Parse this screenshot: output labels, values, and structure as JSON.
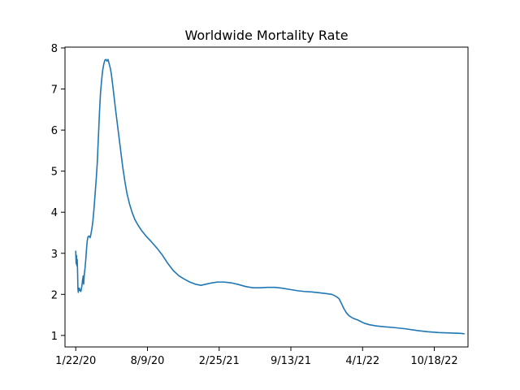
{
  "chart_data": {
    "type": "line",
    "title": "Worldwide Mortality Rate",
    "xlabel": "",
    "ylabel": "",
    "x_tick_labels": [
      "1/22/20",
      "8/9/20",
      "2/25/21",
      "9/13/21",
      "4/1/22",
      "10/18/22"
    ],
    "x_ticks": [
      "2020-01-22",
      "2020-08-09",
      "2021-02-25",
      "2021-09-13",
      "2022-04-01",
      "2022-10-18"
    ],
    "xlim": [
      "2019-12-23",
      "2023-01-20"
    ],
    "ylim": [
      0.72,
      8.02
    ],
    "y_ticks": [
      1,
      2,
      3,
      4,
      5,
      6,
      7,
      8
    ],
    "grid": false,
    "legend": "none",
    "series": [
      {
        "color": "#1f77b4",
        "points": [
          [
            "2020-01-22",
            3.05
          ],
          [
            "2020-01-23",
            2.75
          ],
          [
            "2020-01-24",
            2.95
          ],
          [
            "2020-01-25",
            2.7
          ],
          [
            "2020-01-26",
            2.85
          ],
          [
            "2020-01-27",
            2.6
          ],
          [
            "2020-01-28",
            2.15
          ],
          [
            "2020-01-29",
            2.05
          ],
          [
            "2020-01-30",
            2.15
          ],
          [
            "2020-01-31",
            2.1
          ],
          [
            "2020-02-01",
            2.15
          ],
          [
            "2020-02-02",
            2.12
          ],
          [
            "2020-02-03",
            2.1
          ],
          [
            "2020-02-04",
            2.08
          ],
          [
            "2020-02-05",
            2.07
          ],
          [
            "2020-02-06",
            2.1
          ],
          [
            "2020-02-08",
            2.2
          ],
          [
            "2020-02-10",
            2.35
          ],
          [
            "2020-02-12",
            2.45
          ],
          [
            "2020-02-13",
            2.25
          ],
          [
            "2020-02-15",
            2.5
          ],
          [
            "2020-02-17",
            2.65
          ],
          [
            "2020-02-19",
            2.85
          ],
          [
            "2020-02-21",
            3.1
          ],
          [
            "2020-02-23",
            3.3
          ],
          [
            "2020-02-25",
            3.4
          ],
          [
            "2020-02-28",
            3.42
          ],
          [
            "2020-03-02",
            3.38
          ],
          [
            "2020-03-04",
            3.45
          ],
          [
            "2020-03-07",
            3.6
          ],
          [
            "2020-03-10",
            3.8
          ],
          [
            "2020-03-13",
            4.1
          ],
          [
            "2020-03-16",
            4.45
          ],
          [
            "2020-03-19",
            4.8
          ],
          [
            "2020-03-22",
            5.2
          ],
          [
            "2020-03-25",
            5.8
          ],
          [
            "2020-03-28",
            6.4
          ],
          [
            "2020-03-31",
            6.9
          ],
          [
            "2020-04-03",
            7.2
          ],
          [
            "2020-04-06",
            7.45
          ],
          [
            "2020-04-09",
            7.6
          ],
          [
            "2020-04-12",
            7.7
          ],
          [
            "2020-04-15",
            7.72
          ],
          [
            "2020-04-18",
            7.68
          ],
          [
            "2020-04-21",
            7.72
          ],
          [
            "2020-04-24",
            7.62
          ],
          [
            "2020-04-27",
            7.52
          ],
          [
            "2020-04-30",
            7.38
          ],
          [
            "2020-05-04",
            7.1
          ],
          [
            "2020-05-08",
            6.8
          ],
          [
            "2020-05-12",
            6.5
          ],
          [
            "2020-05-17",
            6.15
          ],
          [
            "2020-05-22",
            5.8
          ],
          [
            "2020-05-27",
            5.45
          ],
          [
            "2020-06-01",
            5.1
          ],
          [
            "2020-06-07",
            4.75
          ],
          [
            "2020-06-13",
            4.45
          ],
          [
            "2020-06-20",
            4.2
          ],
          [
            "2020-06-27",
            4.0
          ],
          [
            "2020-07-05",
            3.82
          ],
          [
            "2020-07-14",
            3.68
          ],
          [
            "2020-07-24",
            3.55
          ],
          [
            "2020-08-05",
            3.42
          ],
          [
            "2020-08-20",
            3.28
          ],
          [
            "2020-09-05",
            3.12
          ],
          [
            "2020-09-20",
            2.95
          ],
          [
            "2020-10-05",
            2.75
          ],
          [
            "2020-10-20",
            2.58
          ],
          [
            "2020-11-05",
            2.45
          ],
          [
            "2020-11-20",
            2.37
          ],
          [
            "2020-12-05",
            2.3
          ],
          [
            "2020-12-20",
            2.25
          ],
          [
            "2021-01-05",
            2.22
          ],
          [
            "2021-01-20",
            2.25
          ],
          [
            "2021-02-05",
            2.28
          ],
          [
            "2021-02-20",
            2.3
          ],
          [
            "2021-03-10",
            2.3
          ],
          [
            "2021-03-31",
            2.28
          ],
          [
            "2021-04-20",
            2.24
          ],
          [
            "2021-05-10",
            2.19
          ],
          [
            "2021-05-30",
            2.16
          ],
          [
            "2021-06-20",
            2.16
          ],
          [
            "2021-07-10",
            2.17
          ],
          [
            "2021-07-31",
            2.17
          ],
          [
            "2021-08-20",
            2.15
          ],
          [
            "2021-09-10",
            2.12
          ],
          [
            "2021-10-01",
            2.09
          ],
          [
            "2021-10-20",
            2.07
          ],
          [
            "2021-11-10",
            2.06
          ],
          [
            "2021-12-01",
            2.04
          ],
          [
            "2021-12-20",
            2.02
          ],
          [
            "2022-01-05",
            2.0
          ],
          [
            "2022-01-15",
            1.96
          ],
          [
            "2022-01-25",
            1.9
          ],
          [
            "2022-02-01",
            1.78
          ],
          [
            "2022-02-08",
            1.65
          ],
          [
            "2022-02-15",
            1.55
          ],
          [
            "2022-02-22",
            1.48
          ],
          [
            "2022-03-05",
            1.42
          ],
          [
            "2022-03-20",
            1.37
          ],
          [
            "2022-04-05",
            1.3
          ],
          [
            "2022-04-20",
            1.26
          ],
          [
            "2022-05-10",
            1.23
          ],
          [
            "2022-06-01",
            1.21
          ],
          [
            "2022-06-30",
            1.19
          ],
          [
            "2022-07-31",
            1.16
          ],
          [
            "2022-08-31",
            1.12
          ],
          [
            "2022-09-30",
            1.09
          ],
          [
            "2022-10-31",
            1.07
          ],
          [
            "2022-11-30",
            1.06
          ],
          [
            "2022-12-31",
            1.05
          ],
          [
            "2023-01-09",
            1.04
          ]
        ]
      }
    ]
  }
}
